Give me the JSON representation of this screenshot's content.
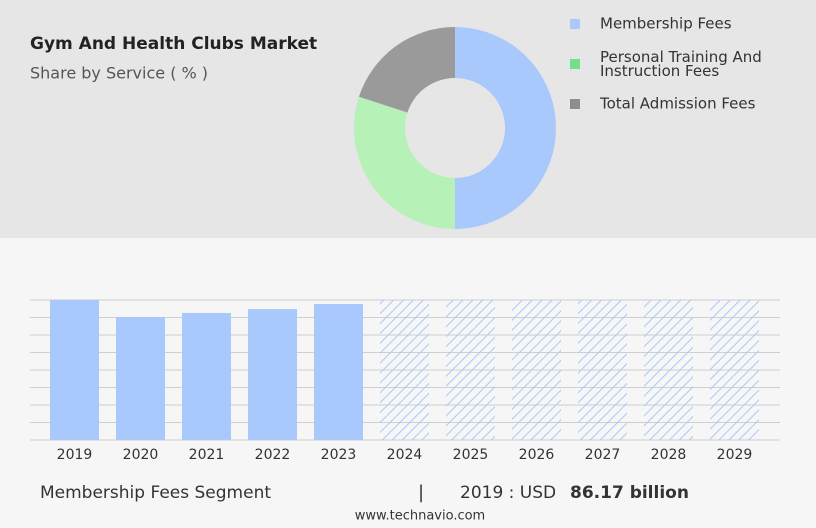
{
  "chart_data": [
    {
      "type": "donut",
      "title": "Gym And Health Clubs Market",
      "subtitle": "Share by Service ( % )",
      "categories": [
        "Membership Fees",
        "Personal Training And Instruction Fees",
        "Total Admission Fees"
      ],
      "values": [
        50,
        30,
        20
      ],
      "colors": [
        "#a9c8fb",
        "#b6f1b8",
        "#9a9a9a"
      ],
      "legend_colors": [
        "#a9c8fb",
        "#6fe08c",
        "#8e8e8e"
      ]
    },
    {
      "type": "bar",
      "categories": [
        "2019",
        "2020",
        "2021",
        "2022",
        "2023",
        "2024",
        "2025",
        "2026",
        "2027",
        "2028",
        "2029"
      ],
      "values": [
        86.17,
        75.7,
        78.2,
        80.6,
        83.7,
        null,
        null,
        null,
        null,
        null,
        null
      ],
      "color": "#a9c8fb",
      "ylim": [
        0,
        86.17
      ],
      "grid": true
    }
  ],
  "footer": {
    "segment": "Membership Fees Segment",
    "separator": "|",
    "highlight": "2019 : USD",
    "value": "86.17 billion",
    "source": "www.technavio.com"
  }
}
